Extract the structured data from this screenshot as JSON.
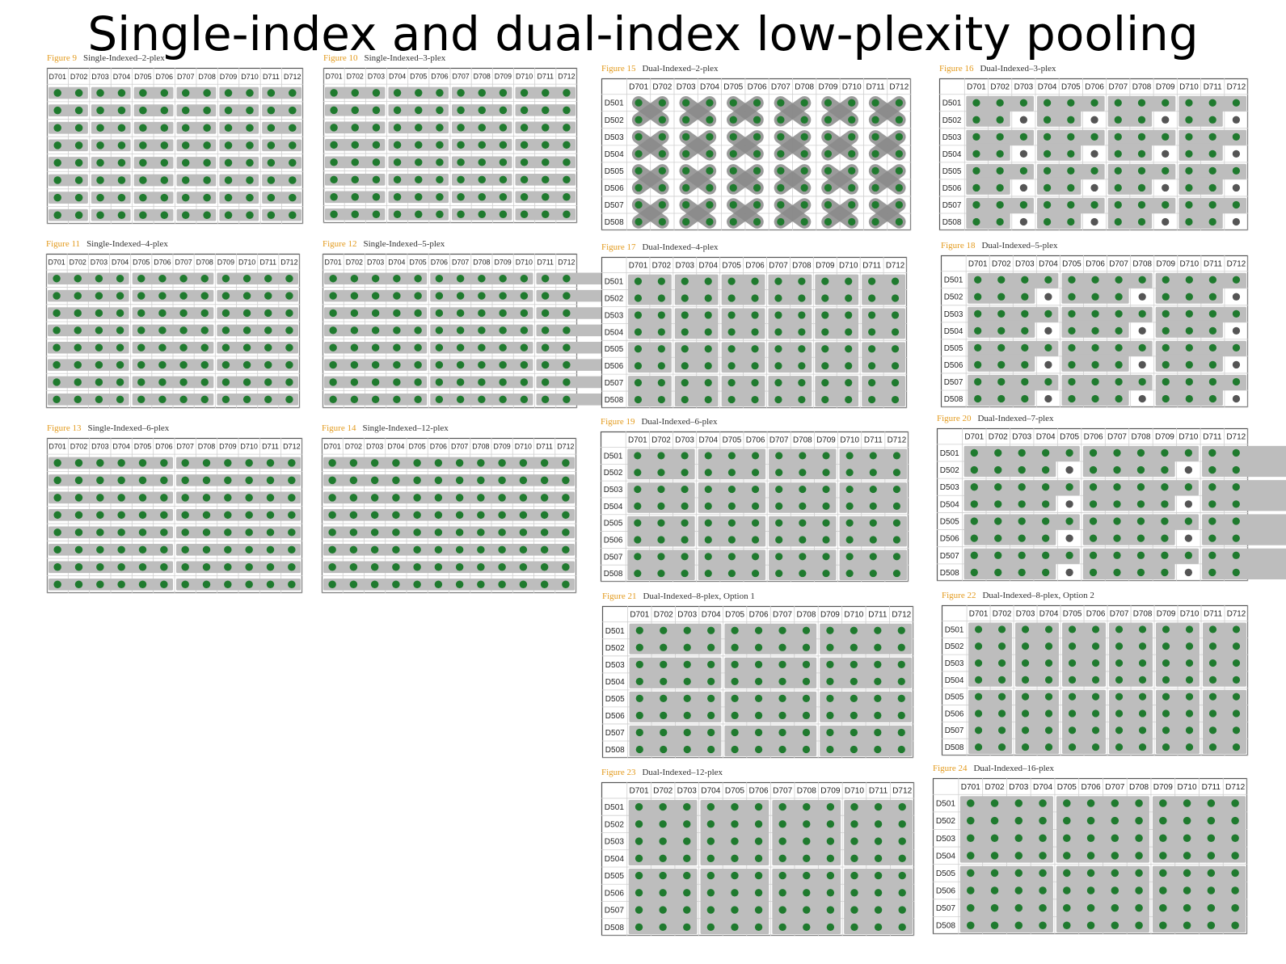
{
  "title": "Single-index and dual-index low-plexity pooling",
  "colors": {
    "well_filled": "#1f7a2e",
    "well_empty": "#555555",
    "pool": "#bdbdbd",
    "grid": "#cfcfcf",
    "border": "#555555",
    "caption_number": "#e39a1c"
  },
  "columns": [
    "D701",
    "D702",
    "D703",
    "D704",
    "D705",
    "D706",
    "D707",
    "D708",
    "D709",
    "D710",
    "D711",
    "D712"
  ],
  "rows": [
    "D501",
    "D502",
    "D503",
    "D504",
    "D505",
    "D506",
    "D507",
    "D508"
  ],
  "figures": [
    {
      "number": "Figure 9",
      "name": "Single-Indexed–2-plex",
      "row_labels": false,
      "pool": {
        "kind": "h",
        "size": 2
      }
    },
    {
      "number": "Figure 10",
      "name": "Single-Indexed–3-plex",
      "row_labels": false,
      "pool": {
        "kind": "h",
        "size": 3
      }
    },
    {
      "number": "Figure 11",
      "name": "Single-Indexed–4-plex",
      "row_labels": false,
      "pool": {
        "kind": "h",
        "size": 4
      }
    },
    {
      "number": "Figure 12",
      "name": "Single-Indexed–5-plex",
      "row_labels": false,
      "pool": {
        "kind": "h",
        "size": 5
      }
    },
    {
      "number": "Figure 13",
      "name": "Single-Indexed–6-plex",
      "row_labels": false,
      "pool": {
        "kind": "h",
        "size": 6
      }
    },
    {
      "number": "Figure 14",
      "name": "Single-Indexed–12-plex",
      "row_labels": false,
      "pool": {
        "kind": "h",
        "size": 12
      }
    },
    {
      "number": "Figure 15",
      "name": "Dual-Indexed–2-plex",
      "row_labels": true,
      "pool": {
        "kind": "x"
      }
    },
    {
      "number": "Figure 16",
      "name": "Dual-Indexed–3-plex",
      "row_labels": true,
      "pool": {
        "kind": "l",
        "w": 2
      }
    },
    {
      "number": "Figure 17",
      "name": "Dual-Indexed–4-plex",
      "row_labels": true,
      "pool": {
        "kind": "r",
        "w": 2,
        "h": 2
      }
    },
    {
      "number": "Figure 18",
      "name": "Dual-Indexed–5-plex",
      "row_labels": true,
      "pool": {
        "kind": "l",
        "w": 3
      }
    },
    {
      "number": "Figure 19",
      "name": "Dual-Indexed–6-plex",
      "row_labels": true,
      "pool": {
        "kind": "r",
        "w": 3,
        "h": 2
      }
    },
    {
      "number": "Figure 20",
      "name": "Dual-Indexed–7-plex",
      "row_labels": true,
      "pool": {
        "kind": "l",
        "w": 4
      }
    },
    {
      "number": "Figure 21",
      "name": "Dual-Indexed–8-plex, Option 1",
      "row_labels": true,
      "pool": {
        "kind": "r",
        "w": 4,
        "h": 2
      }
    },
    {
      "number": "Figure 22",
      "name": "Dual-Indexed–8-plex, Option 2",
      "row_labels": true,
      "pool": {
        "kind": "r",
        "w": 2,
        "h": 4
      }
    },
    {
      "number": "Figure 23",
      "name": "Dual-Indexed–12-plex",
      "row_labels": true,
      "pool": {
        "kind": "r",
        "w": 3,
        "h": 4
      }
    },
    {
      "number": "Figure 24",
      "name": "Dual-Indexed–16-plex",
      "row_labels": true,
      "pool": {
        "kind": "r",
        "w": 4,
        "h": 4
      }
    }
  ]
}
